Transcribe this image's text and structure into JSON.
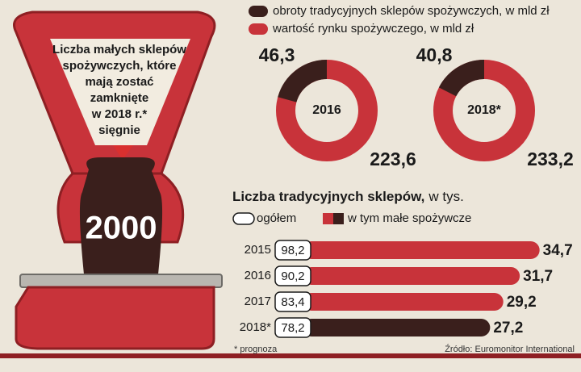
{
  "illustration": {
    "text_lines": [
      "Liczba małych sklepów",
      "spożywczych, które",
      "mają zostać",
      "zamknięte",
      "w 2018 r.*",
      "sięgnie"
    ],
    "value": 2000
  },
  "chart_data": [
    {
      "type": "donut",
      "categories": [
        "2016",
        "2018*"
      ],
      "series": [
        {
          "name": "obroty tradycyjnych sklepów spożywczych, w mld zł",
          "color": "#3a1f1c",
          "values": [
            46.3,
            40.8
          ],
          "value_labels": [
            "46,3",
            "40,8"
          ]
        },
        {
          "name": "wartość rynku spożywczego, w mld zł",
          "color": "#c8333a",
          "values": [
            223.6,
            233.2
          ],
          "value_labels": [
            "223,6",
            "233,2"
          ]
        }
      ]
    },
    {
      "type": "hbar",
      "title": "Liczba tradycyjnych sklepów,",
      "units": "w tys.",
      "categories": [
        "2015",
        "2016",
        "2017",
        "2018*"
      ],
      "xlim": [
        0,
        40
      ],
      "series": [
        {
          "name": "ogółem",
          "color": "#ffffff",
          "values": [
            98.2,
            90.2,
            83.4,
            78.2
          ],
          "value_labels": [
            "98,2",
            "90,2",
            "83,4",
            "78,2"
          ]
        },
        {
          "name": "w tym małe spożywcze",
          "color": "#c8333a",
          "colors": [
            "#c8333a",
            "#c8333a",
            "#c8333a",
            "#3a1f1c"
          ],
          "values": [
            34.7,
            31.7,
            29.2,
            27.2
          ],
          "value_labels": [
            "34,7",
            "31,7",
            "29,2",
            "27,2"
          ]
        }
      ]
    }
  ],
  "footnote": "* prognoza",
  "source": "Źródło: Euromonitor International"
}
